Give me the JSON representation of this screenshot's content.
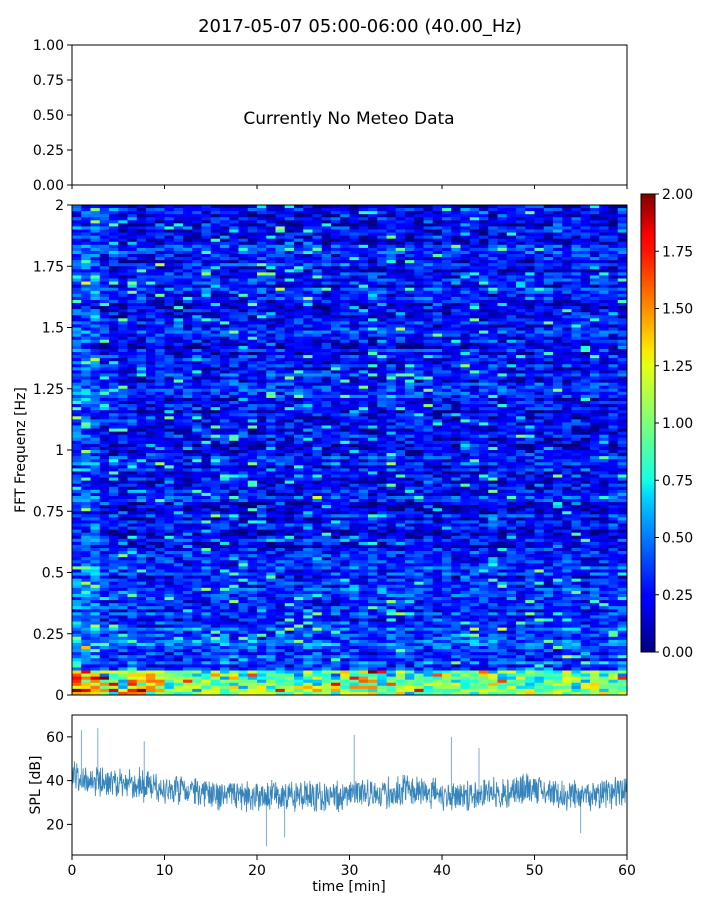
{
  "figure_title": "2017-05-07 05:00-06:00 (40.00_Hz)",
  "chart_data": [
    {
      "type": "line",
      "panel": "meteo",
      "title": "",
      "message": "Currently No Meteo Data",
      "ylim": [
        0,
        1
      ],
      "y_ticks": [
        "0.00",
        "0.25",
        "0.50",
        "0.75",
        "1.00"
      ],
      "x_ticks_shown": false,
      "series": []
    },
    {
      "type": "heatmap",
      "panel": "spectrogram",
      "ylabel": "FFT Frequenz [Hz]",
      "xlim": [
        0,
        60
      ],
      "ylim": [
        0,
        2
      ],
      "y_ticks": [
        "0",
        "0.25",
        "0.5",
        "0.75",
        "1",
        "1.25",
        "1.5",
        "1.75",
        "2"
      ],
      "colorbar": {
        "range": [
          0,
          2
        ],
        "ticks": [
          "0.00",
          "0.25",
          "0.50",
          "0.75",
          "1.00",
          "1.25",
          "1.50",
          "1.75",
          "2.00"
        ],
        "colormap": "jet",
        "placement": "right"
      },
      "value_description": {
        "background_level": 0.25,
        "low_frequency_high_values_below_hz": 0.1,
        "low_frequency_peak": 2.0
      }
    },
    {
      "type": "line",
      "panel": "spl",
      "xlabel": "time [min]",
      "ylabel": "SPL [dB]",
      "xlim": [
        0,
        60
      ],
      "ylim": [
        6,
        70
      ],
      "x_ticks": [
        "0",
        "10",
        "20",
        "30",
        "40",
        "50",
        "60"
      ],
      "y_ticks": [
        "20",
        "40",
        "60"
      ],
      "color": "#1f77b4",
      "series": [
        {
          "x": [
            0,
            1,
            2,
            3,
            4,
            5,
            6,
            7,
            8,
            9,
            10,
            11,
            12,
            13,
            14,
            15,
            16,
            17,
            18,
            19,
            20,
            21,
            22,
            23,
            24,
            25,
            26,
            27,
            28,
            29,
            30,
            31,
            32,
            33,
            34,
            35,
            36,
            37,
            38,
            39,
            40,
            41,
            42,
            43,
            44,
            45,
            46,
            47,
            48,
            49,
            50,
            51,
            52,
            53,
            54,
            55,
            56,
            57,
            58,
            59,
            60
          ],
          "mean": [
            44,
            41,
            39,
            40,
            39,
            38,
            38,
            38,
            38,
            37,
            36,
            36,
            35,
            35,
            34,
            34,
            34,
            34,
            33,
            33,
            33,
            33,
            33,
            33,
            33,
            33,
            33,
            33,
            33,
            33,
            34,
            34,
            34,
            34,
            34,
            35,
            36,
            36,
            35,
            34,
            33,
            33,
            33,
            33,
            34,
            34,
            34,
            34,
            36,
            36,
            36,
            36,
            35,
            34,
            33,
            33,
            33,
            34,
            34,
            35,
            36
          ],
          "band_low": [
            36,
            33,
            31,
            31,
            30,
            30,
            29,
            29,
            29,
            28,
            27,
            27,
            27,
            26,
            26,
            26,
            26,
            26,
            25,
            25,
            25,
            25,
            25,
            25,
            25,
            25,
            25,
            25,
            25,
            25,
            26,
            26,
            26,
            26,
            26,
            27,
            27,
            27,
            27,
            26,
            25,
            25,
            25,
            25,
            26,
            26,
            26,
            26,
            27,
            27,
            27,
            27,
            27,
            26,
            25,
            25,
            25,
            26,
            26,
            26,
            27
          ],
          "band_high": [
            52,
            49,
            47,
            48,
            47,
            46,
            46,
            46,
            46,
            45,
            44,
            44,
            43,
            43,
            42,
            42,
            42,
            42,
            41,
            41,
            41,
            41,
            41,
            41,
            41,
            41,
            41,
            41,
            41,
            41,
            42,
            42,
            42,
            42,
            42,
            43,
            44,
            44,
            43,
            42,
            41,
            41,
            41,
            41,
            42,
            42,
            42,
            42,
            44,
            44,
            44,
            44,
            43,
            42,
            41,
            41,
            41,
            42,
            42,
            43,
            44
          ],
          "spikes": [
            [
              1,
              63
            ],
            [
              2.8,
              64
            ],
            [
              7.8,
              58
            ],
            [
              21,
              10
            ],
            [
              30.5,
              61
            ],
            [
              23,
              14
            ],
            [
              41,
              60
            ],
            [
              44,
              55
            ],
            [
              55,
              16
            ]
          ]
        }
      ]
    }
  ]
}
